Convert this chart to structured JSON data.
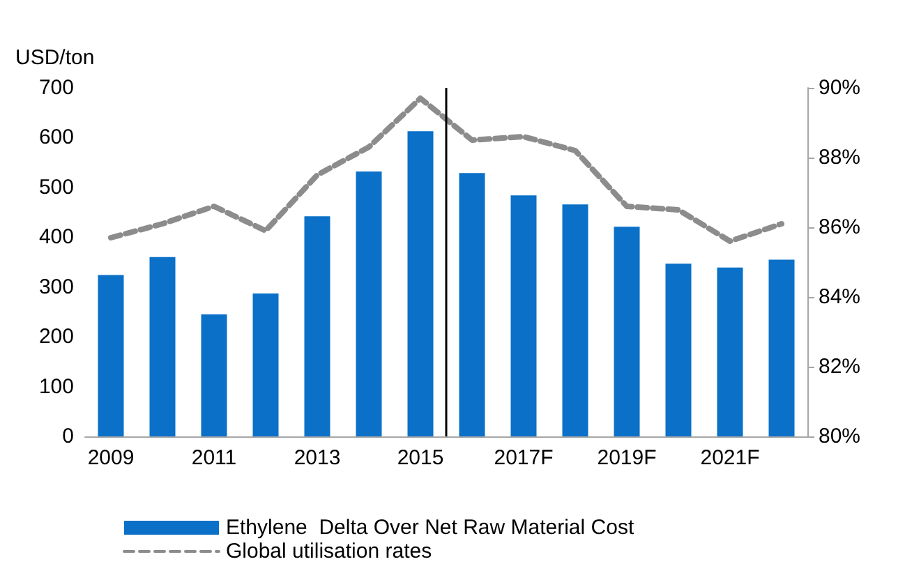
{
  "chart_data": {
    "type": "bar",
    "ylabel": "USD/ton",
    "categories": [
      "2009",
      null,
      "2011",
      null,
      "2013",
      null,
      "2015",
      null,
      "2017F",
      null,
      "2019F",
      null,
      "2021F",
      null
    ],
    "series": [
      {
        "name": "Ethylene  Delta Over Net Raw Material Cost",
        "color": "#0a70c8",
        "values": [
          324,
          360,
          245,
          287,
          442,
          532,
          613,
          529,
          484,
          466,
          421,
          347,
          339,
          355
        ]
      },
      {
        "name": "Global utilisation rates",
        "type": "line",
        "axis": "y2",
        "color": "#8c8c8c",
        "line_style": "dashed",
        "values": [
          85.7,
          86.1,
          86.6,
          85.9,
          87.5,
          88.3,
          89.7,
          88.5,
          88.6,
          88.2,
          86.6,
          86.5,
          85.6,
          86.1
        ]
      }
    ],
    "ylim": [
      0,
      700
    ],
    "yticks": [
      0,
      100,
      200,
      300,
      400,
      500,
      600,
      700
    ],
    "y2lim": [
      80,
      90
    ],
    "y2ticks": [
      {
        "value": 80,
        "label": "80%"
      },
      {
        "value": 82,
        "label": "82%"
      },
      {
        "value": 84,
        "label": "84%"
      },
      {
        "value": 86,
        "label": "86%"
      },
      {
        "value": 88,
        "label": "88%"
      },
      {
        "value": 90,
        "label": "90%"
      }
    ],
    "grid": false,
    "legend": "bottom",
    "marker": "none"
  }
}
